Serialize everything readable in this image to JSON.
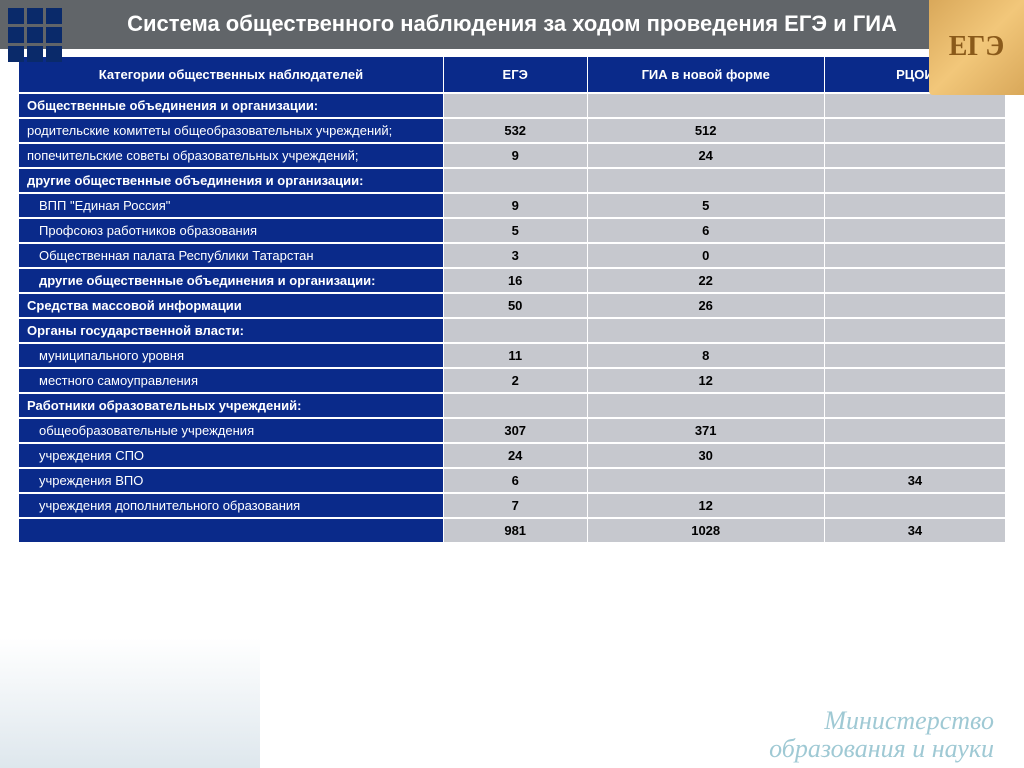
{
  "title": "Система общественного наблюдения за ходом проведения ЕГЭ и ГИА",
  "corner_badge": "ЕГЭ",
  "footer_line1": "Министерство",
  "footer_line2": "образования и науки",
  "table": {
    "header_bg": "#0a2a8a",
    "header_fg": "#ffffff",
    "label_bg": "#0a2a8a",
    "label_fg": "#ffffff",
    "value_bg": "#c6c8ce",
    "value_fg": "#000000",
    "columns": [
      "Категории общественных наблюдателей",
      "ЕГЭ",
      "ГИА в новой форме",
      "РЦОИ"
    ],
    "rows": [
      {
        "label": "Общественные объединения и организации:",
        "indent": 0,
        "bold": true,
        "ege": "",
        "gia": "",
        "rc": ""
      },
      {
        "label": "родительские комитеты общеобразовательных учреждений;",
        "indent": 0,
        "bold": false,
        "ege": "532",
        "gia": "512",
        "rc": ""
      },
      {
        "label": "попечительские советы образовательных учреждений;",
        "indent": 0,
        "bold": false,
        "ege": "9",
        "gia": "24",
        "rc": ""
      },
      {
        "label": "другие общественные объединения и организации:",
        "indent": 0,
        "bold": true,
        "ege": "",
        "gia": "",
        "rc": ""
      },
      {
        "label": "ВПП \"Единая Россия\"",
        "indent": 1,
        "bold": false,
        "ege": "9",
        "gia": "5",
        "rc": ""
      },
      {
        "label": "Профсоюз работников образования",
        "indent": 1,
        "bold": false,
        "ege": "5",
        "gia": "6",
        "rc": ""
      },
      {
        "label": "Общественная палата Республики Татарстан",
        "indent": 1,
        "bold": false,
        "ege": "3",
        "gia": "0",
        "rc": ""
      },
      {
        "label": "другие общественные объединения и организации:",
        "indent": 1,
        "bold": true,
        "ege": "16",
        "gia": "22",
        "rc": ""
      },
      {
        "label": "Средства массовой информации",
        "indent": 0,
        "bold": true,
        "ege": "50",
        "gia": "26",
        "rc": ""
      },
      {
        "label": "Органы государственной власти:",
        "indent": 0,
        "bold": true,
        "ege": "",
        "gia": "",
        "rc": ""
      },
      {
        "label": "муниципального уровня",
        "indent": 1,
        "bold": false,
        "ege": "11",
        "gia": "8",
        "rc": ""
      },
      {
        "label": "местного самоуправления",
        "indent": 1,
        "bold": false,
        "ege": "2",
        "gia": "12",
        "rc": ""
      },
      {
        "label": "Работники  образовательных учреждений:",
        "indent": 0,
        "bold": true,
        "ege": "",
        "gia": "",
        "rc": ""
      },
      {
        "label": "общеобразовательные учреждения",
        "indent": 1,
        "bold": false,
        "ege": "307",
        "gia": "371",
        "rc": ""
      },
      {
        "label": "учреждения СПО",
        "indent": 1,
        "bold": false,
        "ege": "24",
        "gia": "30",
        "rc": ""
      },
      {
        "label": "учреждения ВПО",
        "indent": 1,
        "bold": false,
        "ege": "6",
        "gia": "",
        "rc": "34"
      },
      {
        "label": "учреждения дополнительного образования",
        "indent": 1,
        "bold": false,
        "ege": "7",
        "gia": "12",
        "rc": ""
      },
      {
        "label": "",
        "indent": 0,
        "bold": true,
        "ege": "981",
        "gia": "1028",
        "rc": "34"
      }
    ]
  }
}
